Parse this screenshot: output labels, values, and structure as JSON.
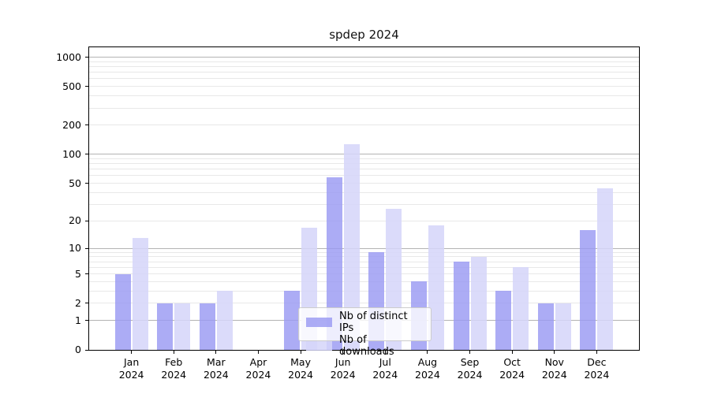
{
  "title": "spdep 2024",
  "colors": {
    "ips_bar": "rgba(154,154,243,0.82)",
    "downloads_bar": "rgba(213,213,249,0.85)",
    "major_grid": "#b3b3b3",
    "minor_grid": "#e8e8e8",
    "axis": "#000000"
  },
  "legend": {
    "entries": [
      {
        "label": "Nb of distinct IPs",
        "swatch": "ips-swatch"
      },
      {
        "label": "Nb of downloads",
        "swatch": "downloads-swatch"
      }
    ],
    "position": "bottom-center-inside"
  },
  "chart_data": {
    "type": "bar",
    "title": "spdep 2024",
    "xlabel": "",
    "ylabel": "",
    "scale": "log1p",
    "grid": true,
    "categories": [
      "Jan 2024",
      "Feb 2024",
      "Mar 2024",
      "Apr 2024",
      "May 2024",
      "Jun 2024",
      "Jul 2024",
      "Aug 2024",
      "Sep 2024",
      "Oct 2024",
      "Nov 2024",
      "Dec 2024"
    ],
    "series": [
      {
        "name": "Nb of distinct IPs",
        "values": [
          5,
          2,
          2,
          0,
          3,
          58,
          9,
          4,
          7,
          3,
          2,
          16
        ]
      },
      {
        "name": "Nb of downloads",
        "values": [
          13,
          2,
          3,
          0,
          17,
          127,
          27,
          18,
          8,
          6,
          2,
          44
        ]
      }
    ],
    "y_ticks": [
      0,
      1,
      2,
      5,
      10,
      20,
      50,
      100,
      200,
      500,
      1000
    ],
    "major_gridlines": [
      1,
      10,
      100,
      1000
    ],
    "minor_gridlines": [
      2,
      3,
      4,
      5,
      6,
      7,
      8,
      9,
      20,
      30,
      40,
      50,
      60,
      70,
      80,
      90,
      200,
      300,
      400,
      500,
      600,
      700,
      800,
      900
    ],
    "ylim": [
      0,
      1262
    ],
    "ylim_top": 1262,
    "legend_position": "lower center"
  }
}
